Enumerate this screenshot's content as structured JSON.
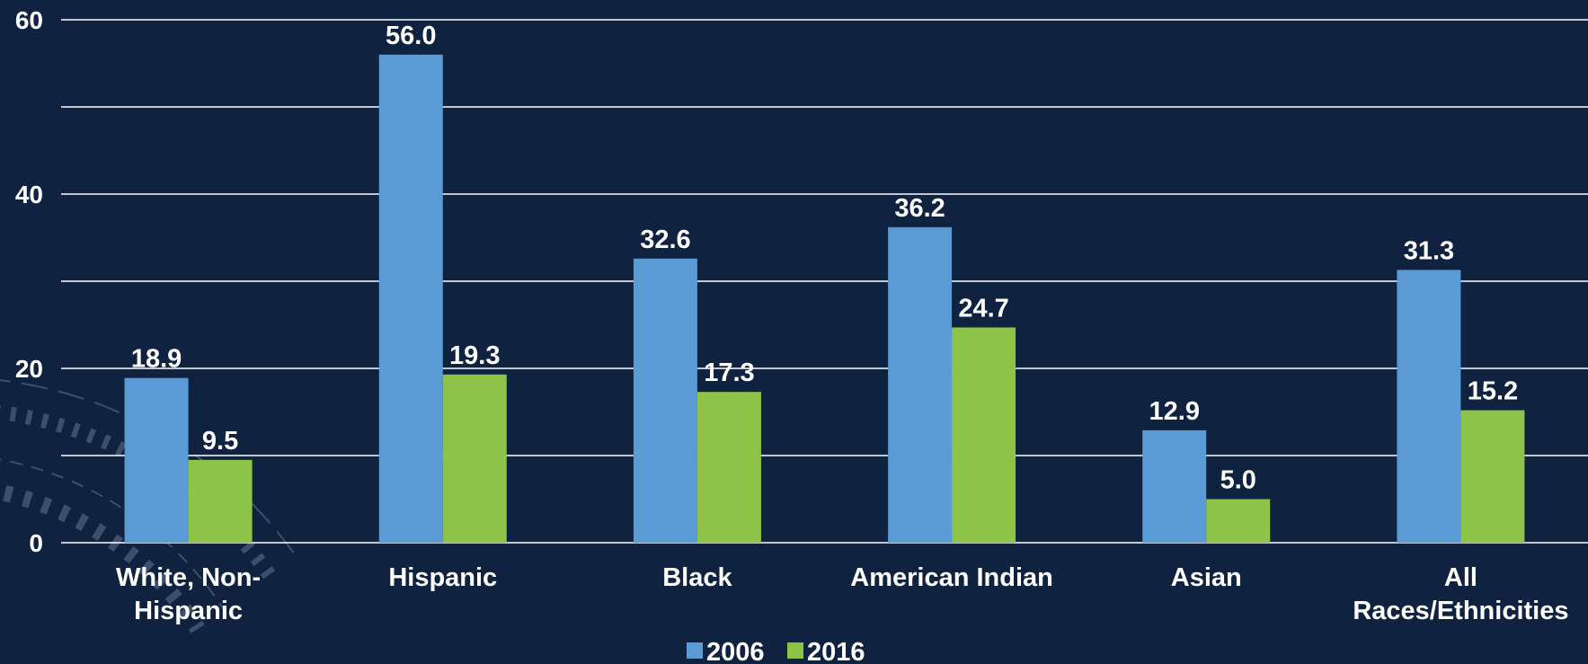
{
  "chart_data": {
    "type": "bar",
    "categories": [
      [
        "White, Non-",
        "Hispanic"
      ],
      [
        "Hispanic"
      ],
      [
        "Black"
      ],
      [
        "American Indian"
      ],
      [
        "Asian"
      ],
      [
        "All",
        "Races/Ethnicities"
      ]
    ],
    "series": [
      {
        "name": "2006",
        "color": "#5b9bd5",
        "values": [
          18.9,
          56.0,
          32.6,
          36.2,
          12.9,
          31.3
        ],
        "labels": [
          "18.9",
          "56.0",
          "32.6",
          "36.2",
          "12.9",
          "31.3"
        ]
      },
      {
        "name": "2016",
        "color": "#8dc447",
        "values": [
          9.5,
          19.3,
          17.3,
          24.7,
          5.0,
          15.2
        ],
        "labels": [
          "9.5",
          "19.3",
          "17.3",
          "24.7",
          "5.0",
          "15.2"
        ]
      }
    ],
    "ylim": [
      0,
      60
    ],
    "yticks": [
      "0",
      "20",
      "40",
      "60"
    ],
    "grid": true,
    "legend": "bottom-center",
    "colors": {
      "background": "#0f2240",
      "grid": "#ffffff",
      "text": "#ffffff"
    }
  }
}
